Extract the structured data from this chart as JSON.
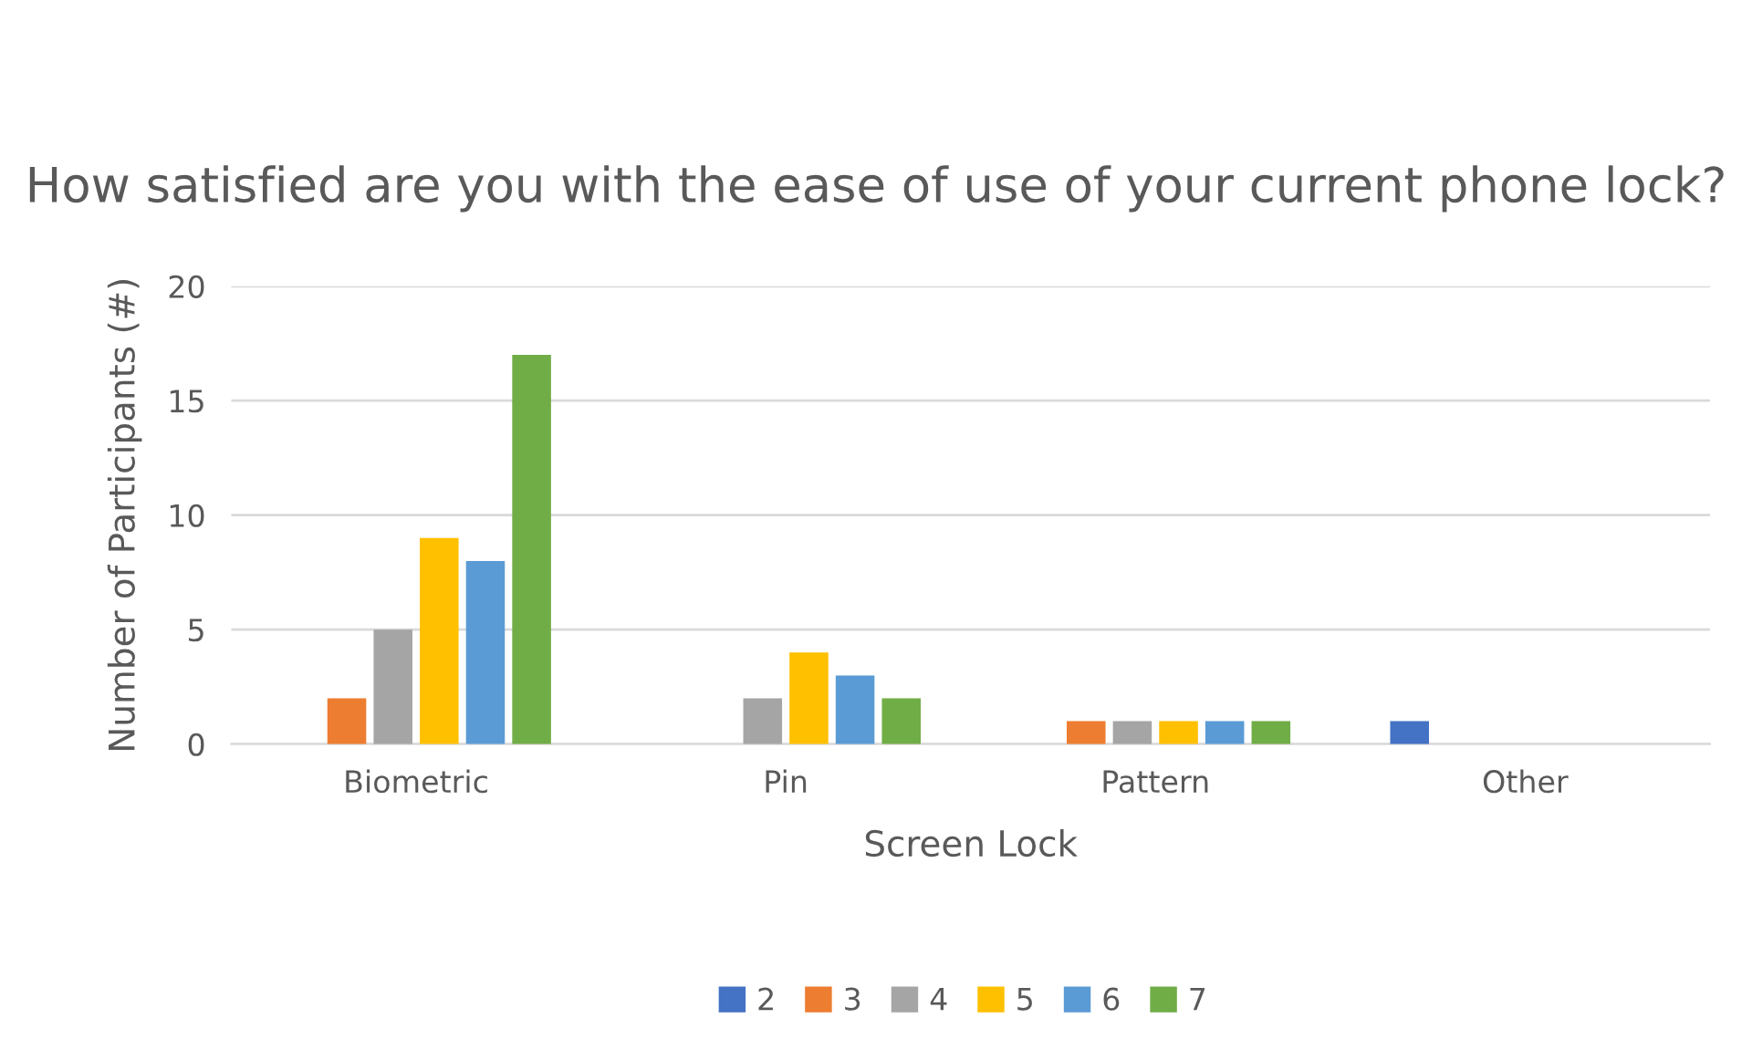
{
  "chart_data": {
    "type": "bar",
    "title": "How satisfied are you with the ease of use of your current phone lock?",
    "xlabel": "Screen Lock",
    "ylabel": "Number of Participants (#)",
    "categories": [
      "Biometric",
      "Pin",
      "Pattern",
      "Other"
    ],
    "series": [
      {
        "name": "2",
        "color": "#4472c4",
        "values": [
          0,
          0,
          0,
          1
        ]
      },
      {
        "name": "3",
        "color": "#ed7d31",
        "values": [
          2,
          0,
          1,
          0
        ]
      },
      {
        "name": "4",
        "color": "#a5a5a5",
        "values": [
          5,
          2,
          1,
          0
        ]
      },
      {
        "name": "5",
        "color": "#ffc000",
        "values": [
          9,
          4,
          1,
          0
        ]
      },
      {
        "name": "6",
        "color": "#5b9bd5",
        "values": [
          8,
          3,
          1,
          0
        ]
      },
      {
        "name": "7",
        "color": "#70ad47",
        "values": [
          17,
          2,
          1,
          0
        ]
      }
    ],
    "ylim": [
      0,
      20
    ],
    "yticks": [
      0,
      5,
      10,
      15,
      20
    ],
    "grid": "y",
    "legend": "bottom"
  }
}
